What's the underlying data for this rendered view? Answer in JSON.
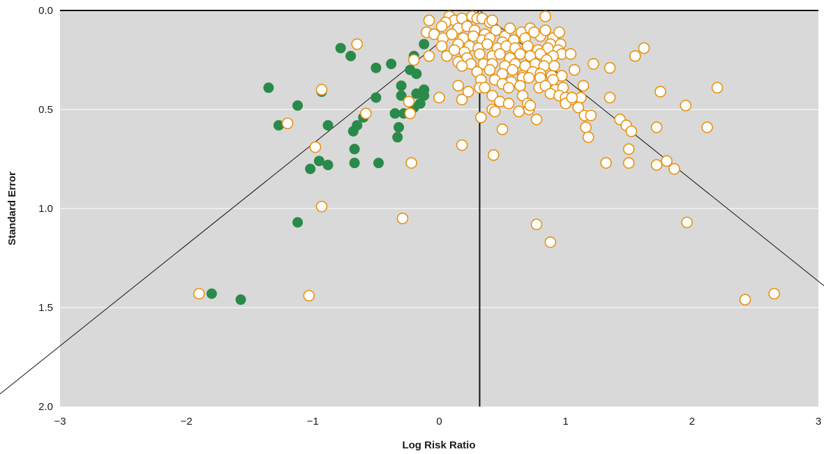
{
  "chart_data": {
    "type": "scatter",
    "title": "",
    "xlabel": "Log Risk Ratio",
    "ylabel": "Standard Error",
    "xlim": [
      -3,
      3
    ],
    "ylim": [
      0,
      2
    ],
    "y_inverted": true,
    "x_ticks": [
      "−3",
      "−2",
      "−1",
      "0",
      "1",
      "2",
      "3"
    ],
    "x_tick_values": [
      -3,
      -2,
      -1,
      0,
      1,
      2,
      3
    ],
    "y_ticks": [
      "0.0",
      "0.5",
      "1.0",
      "1.5",
      "2.0"
    ],
    "y_tick_values": [
      0,
      0.5,
      1.0,
      1.5,
      2.0
    ],
    "grid": "horizontal",
    "plot_background": "#d9d9d9",
    "center_line_x": 0.32,
    "funnel": {
      "apex_x": 0.32,
      "apex_y": 0.0,
      "z": 1.96
    },
    "series": [
      {
        "marker": "filled",
        "color": "#2a8a4a",
        "points": [
          [
            -1.35,
            0.39
          ],
          [
            -1.12,
            0.48
          ],
          [
            -1.27,
            0.58
          ],
          [
            -0.78,
            0.19
          ],
          [
            -0.7,
            0.23
          ],
          [
            -0.5,
            0.29
          ],
          [
            -0.38,
            0.27
          ],
          [
            -0.2,
            0.23
          ],
          [
            -0.12,
            0.17
          ],
          [
            -0.23,
            0.3
          ],
          [
            -0.18,
            0.32
          ],
          [
            -0.3,
            0.38
          ],
          [
            -0.12,
            0.4
          ],
          [
            -0.3,
            0.43
          ],
          [
            -0.18,
            0.42
          ],
          [
            -0.15,
            0.47
          ],
          [
            -0.12,
            0.43
          ],
          [
            -0.5,
            0.44
          ],
          [
            -0.2,
            0.49
          ],
          [
            -0.28,
            0.52
          ],
          [
            -0.35,
            0.52
          ],
          [
            -0.6,
            0.54
          ],
          [
            -0.65,
            0.58
          ],
          [
            -0.68,
            0.61
          ],
          [
            -0.32,
            0.59
          ],
          [
            -0.33,
            0.64
          ],
          [
            -0.67,
            0.7
          ],
          [
            -0.88,
            0.58
          ],
          [
            -0.93,
            0.41
          ],
          [
            -0.48,
            0.77
          ],
          [
            -0.67,
            0.77
          ],
          [
            -0.88,
            0.78
          ],
          [
            -0.95,
            0.76
          ],
          [
            -1.02,
            0.8
          ],
          [
            -1.12,
            1.07
          ],
          [
            -1.8,
            1.43
          ],
          [
            -1.57,
            1.46
          ]
        ]
      },
      {
        "marker": "open",
        "color": "#e8920f",
        "points": [
          [
            0.08,
            0.03
          ],
          [
            0.12,
            0.05
          ],
          [
            0.18,
            0.04
          ],
          [
            0.26,
            0.03
          ],
          [
            0.3,
            0.04
          ],
          [
            0.34,
            0.04
          ],
          [
            0.4,
            0.06
          ],
          [
            0.42,
            0.05
          ],
          [
            0.84,
            0.03
          ],
          [
            0.05,
            0.06
          ],
          [
            -0.08,
            0.05
          ],
          [
            0.02,
            0.08
          ],
          [
            -0.1,
            0.11
          ],
          [
            0.15,
            0.09
          ],
          [
            0.22,
            0.08
          ],
          [
            0.28,
            0.1
          ],
          [
            0.36,
            0.12
          ],
          [
            0.45,
            0.1
          ],
          [
            0.52,
            0.13
          ],
          [
            0.56,
            0.09
          ],
          [
            0.65,
            0.11
          ],
          [
            0.72,
            0.09
          ],
          [
            0.8,
            0.13
          ],
          [
            0.84,
            0.1
          ],
          [
            0.9,
            0.14
          ],
          [
            0.95,
            0.11
          ],
          [
            -0.04,
            0.12
          ],
          [
            0.03,
            0.14
          ],
          [
            0.1,
            0.12
          ],
          [
            0.19,
            0.14
          ],
          [
            0.27,
            0.13
          ],
          [
            0.34,
            0.15
          ],
          [
            0.4,
            0.14
          ],
          [
            0.5,
            0.16
          ],
          [
            0.59,
            0.15
          ],
          [
            0.68,
            0.14
          ],
          [
            0.75,
            0.11
          ],
          [
            0.88,
            0.17
          ],
          [
            0.96,
            0.17
          ],
          [
            0.02,
            0.18
          ],
          [
            0.15,
            0.17
          ],
          [
            0.24,
            0.18
          ],
          [
            0.31,
            0.19
          ],
          [
            0.38,
            0.17
          ],
          [
            0.46,
            0.19
          ],
          [
            0.53,
            0.18
          ],
          [
            0.6,
            0.19
          ],
          [
            0.7,
            0.18
          ],
          [
            0.78,
            0.2
          ],
          [
            0.86,
            0.19
          ],
          [
            0.94,
            0.2
          ],
          [
            0.97,
            0.22
          ],
          [
            1.04,
            0.22
          ],
          [
            0.9,
            0.23
          ],
          [
            -0.08,
            0.23
          ],
          [
            0.06,
            0.23
          ],
          [
            0.12,
            0.2
          ],
          [
            0.2,
            0.21
          ],
          [
            0.22,
            0.24
          ],
          [
            0.32,
            0.22
          ],
          [
            0.42,
            0.23
          ],
          [
            0.48,
            0.22
          ],
          [
            0.56,
            0.24
          ],
          [
            0.64,
            0.22
          ],
          [
            0.72,
            0.23
          ],
          [
            0.8,
            0.22
          ],
          [
            0.85,
            0.25
          ],
          [
            0.15,
            0.26
          ],
          [
            0.25,
            0.27
          ],
          [
            0.35,
            0.27
          ],
          [
            0.42,
            0.27
          ],
          [
            0.52,
            0.28
          ],
          [
            0.6,
            0.27
          ],
          [
            0.68,
            0.28
          ],
          [
            0.76,
            0.27
          ],
          [
            0.83,
            0.28
          ],
          [
            0.91,
            0.28
          ],
          [
            0.18,
            0.28
          ],
          [
            0.3,
            0.31
          ],
          [
            0.4,
            0.3
          ],
          [
            0.5,
            0.32
          ],
          [
            0.58,
            0.3
          ],
          [
            0.66,
            0.33
          ],
          [
            0.74,
            0.31
          ],
          [
            0.8,
            0.32
          ],
          [
            0.89,
            0.33
          ],
          [
            0.97,
            0.33
          ],
          [
            1.07,
            0.3
          ],
          [
            0.33,
            0.35
          ],
          [
            0.44,
            0.35
          ],
          [
            0.57,
            0.36
          ],
          [
            0.66,
            0.34
          ],
          [
            0.71,
            0.34
          ],
          [
            0.8,
            0.34
          ],
          [
            0.9,
            0.35
          ],
          [
            -0.2,
            0.25
          ],
          [
            1.22,
            0.27
          ],
          [
            1.35,
            0.29
          ],
          [
            1.62,
            0.19
          ],
          [
            1.55,
            0.23
          ],
          [
            0.15,
            0.38
          ],
          [
            0.32,
            0.39
          ],
          [
            0.36,
            0.39
          ],
          [
            0.5,
            0.37
          ],
          [
            0.55,
            0.39
          ],
          [
            0.64,
            0.38
          ],
          [
            0.79,
            0.39
          ],
          [
            0.84,
            0.38
          ],
          [
            0.92,
            0.4
          ],
          [
            0.98,
            0.39
          ],
          [
            1.14,
            0.38
          ],
          [
            0.0,
            0.44
          ],
          [
            0.18,
            0.45
          ],
          [
            0.23,
            0.41
          ],
          [
            0.42,
            0.43
          ],
          [
            0.48,
            0.46
          ],
          [
            0.55,
            0.47
          ],
          [
            0.66,
            0.43
          ],
          [
            0.88,
            0.42
          ],
          [
            0.95,
            0.43
          ],
          [
            1.0,
            0.44
          ],
          [
            1.05,
            0.45
          ],
          [
            1.12,
            0.44
          ],
          [
            1.35,
            0.44
          ],
          [
            0.42,
            0.5
          ],
          [
            0.44,
            0.51
          ],
          [
            0.63,
            0.51
          ],
          [
            0.7,
            0.47
          ],
          [
            0.71,
            0.5
          ],
          [
            0.72,
            0.48
          ],
          [
            1.0,
            0.47
          ],
          [
            1.05,
            0.44
          ],
          [
            1.1,
            0.49
          ],
          [
            1.15,
            0.53
          ],
          [
            1.2,
            0.53
          ],
          [
            1.75,
            0.41
          ],
          [
            2.2,
            0.39
          ],
          [
            1.95,
            0.48
          ],
          [
            -0.24,
            0.46
          ],
          [
            -0.23,
            0.52
          ],
          [
            -0.58,
            0.52
          ],
          [
            -0.93,
            0.4
          ],
          [
            -1.2,
            0.57
          ],
          [
            0.33,
            0.54
          ],
          [
            0.5,
            0.6
          ],
          [
            0.77,
            0.55
          ],
          [
            1.16,
            0.59
          ],
          [
            1.18,
            0.64
          ],
          [
            1.43,
            0.55
          ],
          [
            1.48,
            0.58
          ],
          [
            1.52,
            0.61
          ],
          [
            1.72,
            0.59
          ],
          [
            2.12,
            0.59
          ],
          [
            -0.98,
            0.69
          ],
          [
            0.18,
            0.68
          ],
          [
            0.43,
            0.73
          ],
          [
            1.32,
            0.77
          ],
          [
            1.5,
            0.7
          ],
          [
            1.5,
            0.77
          ],
          [
            1.72,
            0.78
          ],
          [
            1.8,
            0.76
          ],
          [
            1.86,
            0.8
          ],
          [
            -0.22,
            0.77
          ],
          [
            -0.93,
            0.99
          ],
          [
            -0.29,
            1.05
          ],
          [
            0.77,
            1.08
          ],
          [
            0.88,
            1.17
          ],
          [
            1.96,
            1.07
          ],
          [
            -1.9,
            1.43
          ],
          [
            -1.03,
            1.44
          ],
          [
            2.42,
            1.46
          ],
          [
            2.65,
            1.43
          ],
          [
            -0.65,
            0.17
          ]
        ]
      }
    ]
  }
}
